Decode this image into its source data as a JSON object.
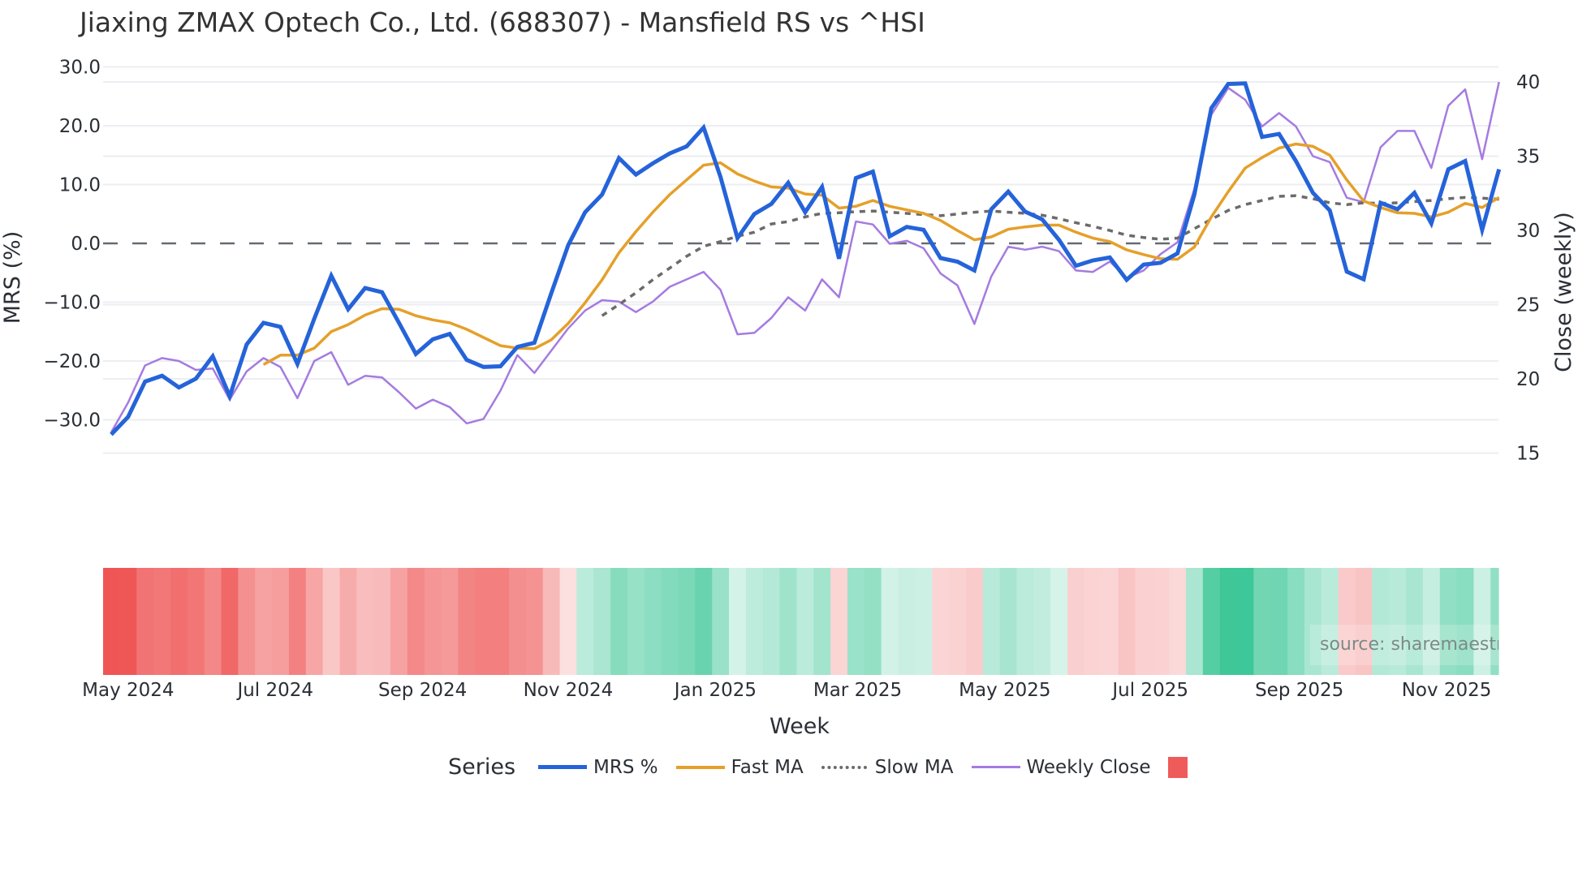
{
  "title": "Jiaxing ZMAX Optech Co., Ltd. (688307) - Mansfield RS vs ^HSI",
  "source_label": "source: sharemaestro.com",
  "legend": {
    "title": "Series",
    "items": [
      {
        "label": "MRS %",
        "color": "#2563d9",
        "style": "solid-thick"
      },
      {
        "label": "Fast MA",
        "color": "#e5a02a",
        "style": "solid"
      },
      {
        "label": "Slow MA",
        "color": "#6b6b6b",
        "style": "dotted"
      },
      {
        "label": "Weekly Close",
        "color": "#a57be0",
        "style": "solid-thin"
      },
      {
        "label": "",
        "color": "#ef5a5a",
        "style": "heat-swatch"
      }
    ]
  },
  "colors": {
    "mrs": "#2563d9",
    "fast_ma": "#e5a02a",
    "slow_ma": "#6b6b6b",
    "close": "#a57be0",
    "zero_line": "#666a73",
    "grid": "#eceef2",
    "heat_negative": "#ef5555",
    "heat_positive": "#2ec28f"
  },
  "chart_data": {
    "type": "line",
    "title": "Jiaxing ZMAX Optech Co., Ltd. (688307) - Mansfield RS vs ^HSI",
    "xlabel": "Week",
    "ylabel": "MRS (%)",
    "y2label": "Close (weekly)",
    "ylim": [
      -35,
      32
    ],
    "y2lim": [
      14,
      42
    ],
    "yticks": [
      "30.0",
      "20.0",
      "10.0",
      "0.0",
      "−10.0",
      "−20.0",
      "−30.0"
    ],
    "y2ticks": [
      "40",
      "35",
      "30",
      "25",
      "20",
      "15"
    ],
    "xticks": [
      "May 2024",
      "Jul 2024",
      "Sep 2024",
      "Nov 2024",
      "Jan 2025",
      "Mar 2025",
      "May 2025",
      "Jul 2025",
      "Sep 2025",
      "Nov 2025"
    ],
    "xtick_week_index": [
      1,
      9.7,
      18.4,
      27,
      35.7,
      44.1,
      52.8,
      61.4,
      70.2,
      78.9
    ],
    "grid": true,
    "zero_line": "dashed",
    "legend_position": "bottom",
    "n_weeks": 83,
    "series": [
      {
        "name": "MRS %",
        "axis": "left",
        "values": [
          -32.5,
          -29.5,
          -23.5,
          -22.5,
          -24.5,
          -23,
          -19.2,
          -26,
          -17.2,
          -13.5,
          -14.2,
          -20.5,
          -12.8,
          -5.5,
          -11.2,
          -7.6,
          -8.3,
          -13.5,
          -18.8,
          -16.3,
          -15.4,
          -19.8,
          -21,
          -20.9,
          -17.6,
          -16.9,
          -8.5,
          -0.3,
          5.3,
          8.3,
          14.5,
          11.7,
          13.6,
          15.3,
          16.5,
          19.7,
          11.3,
          0.9,
          5,
          6.7,
          10.3,
          5.3,
          9.6,
          -2.6,
          11.1,
          12.2,
          1.2,
          2.8,
          2.3,
          -2.5,
          -3.1,
          -4.6,
          5.8,
          8.8,
          5.4,
          4.1,
          0.6,
          -3.8,
          -2.9,
          -2.4,
          -6.2,
          -3.6,
          -3.3,
          -1.7,
          8.3,
          23,
          27.1,
          27.2,
          18.1,
          18.6,
          14,
          8.6,
          5.6,
          -4.8,
          -6.1,
          6.9,
          5.8,
          8.6,
          3.4,
          12.6,
          14,
          2.3,
          12.6
        ]
      },
      {
        "name": "Fast MA",
        "axis": "left",
        "start_index": 9,
        "values": [
          -20.6,
          -19,
          -19,
          -17.8,
          -15,
          -13.8,
          -12.2,
          -11.1,
          -11.2,
          -12.3,
          -13,
          -13.5,
          -14.6,
          -16,
          -17.4,
          -17.8,
          -17.9,
          -16.4,
          -13.6,
          -10.1,
          -6.2,
          -1.6,
          2,
          5.3,
          8.3,
          10.8,
          13.3,
          13.7,
          11.8,
          10.6,
          9.6,
          9.4,
          8.4,
          8.2,
          6,
          6.3,
          7.3,
          6.3,
          5.7,
          5.1,
          3.9,
          2.2,
          0.6,
          1.1,
          2.4,
          2.8,
          3.1,
          3.1,
          1.9,
          0.9,
          0.3,
          -1.1,
          -1.9,
          -2.6,
          -2.7,
          -0.6,
          4.5,
          8.8,
          12.8,
          14.6,
          16.2,
          16.9,
          16.5,
          15,
          10.8,
          7.2,
          6.1,
          5.2,
          5.1,
          4.5,
          5.3,
          6.8,
          6.1,
          7.8
        ]
      },
      {
        "name": "Slow MA",
        "axis": "left",
        "start_index": 29,
        "values": [
          -12.3,
          -10.4,
          -8.4,
          -6.2,
          -4.2,
          -2.2,
          -0.5,
          0.3,
          1.2,
          1.9,
          3.3,
          3.7,
          4.5,
          5.1,
          5.2,
          5.4,
          5.5,
          5.3,
          5.1,
          4.9,
          4.7,
          5,
          5.3,
          5.5,
          5.3,
          5.1,
          4.8,
          4.2,
          3.5,
          2.9,
          2.2,
          1.4,
          1,
          0.7,
          0.9,
          2.5,
          4.1,
          5.6,
          6.6,
          7.3,
          8,
          8.1,
          7.6,
          6.9,
          6.6,
          6.9,
          6.8,
          6.9,
          7.1,
          7.3,
          7.6,
          7.8,
          7.7,
          7.5
        ]
      },
      {
        "name": "Weekly Close",
        "axis": "right",
        "values": [
          16.4,
          18.4,
          20.9,
          21.4,
          21.2,
          20.6,
          20.7,
          18.6,
          20.5,
          21.4,
          20.8,
          18.7,
          21.2,
          21.8,
          19.6,
          20.2,
          20.1,
          19.1,
          18,
          18.6,
          18.1,
          17,
          17.3,
          19.2,
          21.6,
          20.4,
          21.9,
          23.4,
          24.6,
          25.3,
          25.2,
          24.5,
          25.2,
          26.2,
          26.7,
          27.2,
          26,
          23,
          23.1,
          24.1,
          25.5,
          24.6,
          26.7,
          25.5,
          30.6,
          30.4,
          29.1,
          29.3,
          28.8,
          27.1,
          26.3,
          23.7,
          26.9,
          28.9,
          28.7,
          28.9,
          28.6,
          27.3,
          27.2,
          27.9,
          26.8,
          27.3,
          28.4,
          29.2,
          32.8,
          37.8,
          39.6,
          38.8,
          37,
          37.9,
          37,
          35,
          34.6,
          32.2,
          31.9,
          35.6,
          36.7,
          36.7,
          34.2,
          38.4,
          39.5,
          34.8,
          40
        ]
      }
    ],
    "heatmap_band": {
      "description": "Per-week colored band below main chart: red = negative MRS, green = positive MRS, intensity by magnitude",
      "values_ref": "MRS %"
    }
  }
}
